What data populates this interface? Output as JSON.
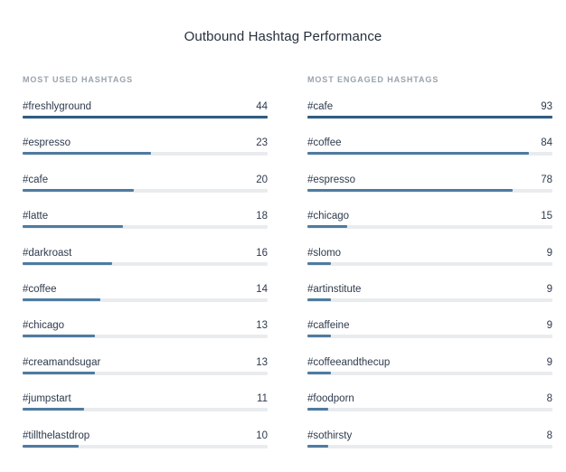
{
  "title": "Outbound Hashtag Performance",
  "chart_data": [
    {
      "type": "bar",
      "title": "MOST USED HASHTAGS",
      "orientation": "horizontal",
      "categories": [
        "#freshlyground",
        "#espresso",
        "#cafe",
        "#latte",
        "#darkroast",
        "#coffee",
        "#chicago",
        "#creamandsugar",
        "#jumpstart",
        "#tillthelastdrop"
      ],
      "values": [
        44,
        23,
        20,
        18,
        16,
        14,
        13,
        13,
        11,
        10
      ],
      "xlim": [
        0,
        44
      ],
      "bar_color": "#4f7ba0",
      "track_color": "#e9ecef"
    },
    {
      "type": "bar",
      "title": "MOST ENGAGED HASHTAGS",
      "orientation": "horizontal",
      "categories": [
        "#cafe",
        "#coffee",
        "#espresso",
        "#chicago",
        "#slomo",
        "#artinstitute",
        "#caffeine",
        "#coffeeandthecup",
        "#foodporn",
        "#sothirsty"
      ],
      "values": [
        93,
        84,
        78,
        15,
        9,
        9,
        9,
        9,
        8,
        8
      ],
      "xlim": [
        0,
        93
      ],
      "bar_color": "#4f7ba0",
      "track_color": "#e9ecef"
    }
  ]
}
